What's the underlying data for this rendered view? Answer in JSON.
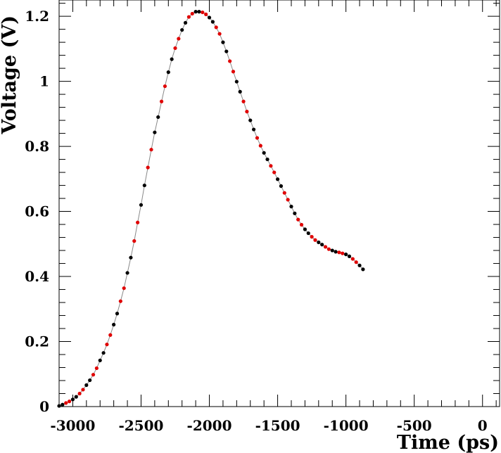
{
  "chart_data": {
    "type": "scatter",
    "title": "",
    "xlabel": "Time (ps)",
    "ylabel": "Voltage (V)",
    "xlim": [
      -3100,
      125
    ],
    "ylim": [
      0,
      1.25
    ],
    "x_ticks": [
      -3000,
      -2500,
      -2000,
      -1500,
      -1000,
      -500,
      0
    ],
    "y_ticks": [
      0,
      0.2,
      0.4,
      0.6,
      0.8,
      1,
      1.2
    ],
    "x_tick_labels": [
      "-3000",
      "-2500",
      "-2000",
      "-1500",
      "-1000",
      "-500",
      "0"
    ],
    "y_tick_labels": [
      "0",
      "0.2",
      "0.4",
      "0.6",
      "0.8",
      "1",
      "1.2"
    ],
    "grid": false,
    "line_color": "#888888",
    "marker_colors": [
      "#000000",
      "#e00000"
    ],
    "series": [
      {
        "x_start": -3100,
        "x_step": 25,
        "marker_color_pattern": "alternating black and red, groups of two",
        "y": [
          0.002,
          0.006,
          0.011,
          0.016,
          0.022,
          0.03,
          0.04,
          0.052,
          0.066,
          0.081,
          0.098,
          0.118,
          0.142,
          0.165,
          0.191,
          0.22,
          0.252,
          0.286,
          0.324,
          0.364,
          0.411,
          0.458,
          0.509,
          0.566,
          0.62,
          0.68,
          0.735,
          0.79,
          0.843,
          0.89,
          0.938,
          0.985,
          1.028,
          1.068,
          1.102,
          1.131,
          1.158,
          1.18,
          1.198,
          1.208,
          1.214,
          1.214,
          1.212,
          1.206,
          1.196,
          1.183,
          1.166,
          1.146,
          1.12,
          1.092,
          1.062,
          1.03,
          0.999,
          0.968,
          0.938,
          0.907,
          0.88,
          0.852,
          0.826,
          0.802,
          0.78,
          0.76,
          0.74,
          0.72,
          0.699,
          0.678,
          0.657,
          0.636,
          0.615,
          0.594,
          0.575,
          0.559,
          0.545,
          0.533,
          0.522,
          0.512,
          0.505,
          0.498,
          0.491,
          0.484,
          0.48,
          0.476,
          0.474,
          0.471,
          0.468,
          0.462,
          0.454,
          0.444,
          0.434,
          0.422
        ]
      }
    ]
  }
}
